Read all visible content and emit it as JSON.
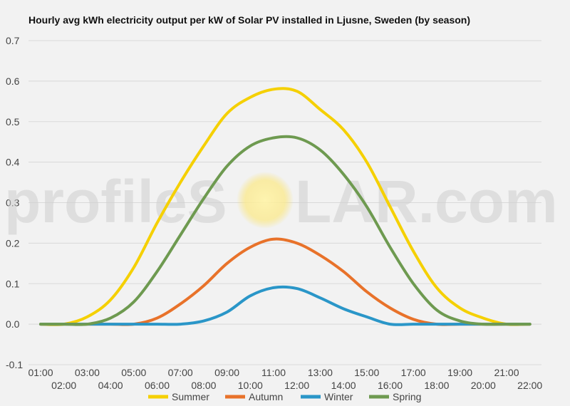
{
  "watermark": {
    "left": "profileS",
    "right": "LAR.com"
  },
  "chart_data": {
    "type": "line",
    "title": "Hourly avg kWh electricity output per kW of Solar PV installed in Ljusne, Sweden (by season)",
    "xlabel": "",
    "ylabel": "",
    "ylim": [
      -0.1,
      0.7
    ],
    "yticks": [
      "-0.1",
      "0.0",
      "0.1",
      "0.2",
      "0.3",
      "0.4",
      "0.5",
      "0.6",
      "0.7"
    ],
    "grid": true,
    "legend": "bottom",
    "x": [
      "01:00",
      "02:00",
      "03:00",
      "04:00",
      "05:00",
      "06:00",
      "07:00",
      "08:00",
      "09:00",
      "10:00",
      "11:00",
      "12:00",
      "13:00",
      "14:00",
      "15:00",
      "16:00",
      "17:00",
      "18:00",
      "19:00",
      "20:00",
      "21:00",
      "22:00"
    ],
    "series": [
      {
        "name": "Summer",
        "color": "#f5d000",
        "values": [
          0.0,
          0.0,
          0.018,
          0.06,
          0.14,
          0.25,
          0.35,
          0.44,
          0.52,
          0.56,
          0.58,
          0.575,
          0.53,
          0.48,
          0.4,
          0.29,
          0.18,
          0.09,
          0.04,
          0.015,
          0.0,
          0.0
        ]
      },
      {
        "name": "Autumn",
        "color": "#e8722a",
        "values": [
          0.0,
          0.0,
          0.0,
          0.0,
          0.0,
          0.015,
          0.05,
          0.095,
          0.15,
          0.19,
          0.21,
          0.2,
          0.17,
          0.13,
          0.08,
          0.04,
          0.012,
          0.0,
          0.0,
          0.0,
          0.0,
          0.0
        ]
      },
      {
        "name": "Winter",
        "color": "#2a96c8",
        "values": [
          0.0,
          0.0,
          0.0,
          0.0,
          0.0,
          0.0,
          0.0,
          0.008,
          0.03,
          0.07,
          0.09,
          0.088,
          0.065,
          0.038,
          0.018,
          0.0,
          0.0,
          0.0,
          0.0,
          0.0,
          0.0,
          0.0
        ]
      },
      {
        "name": "Spring",
        "color": "#6e9a50",
        "values": [
          0.0,
          0.0,
          0.0,
          0.015,
          0.055,
          0.13,
          0.22,
          0.31,
          0.39,
          0.44,
          0.46,
          0.46,
          0.43,
          0.37,
          0.29,
          0.19,
          0.1,
          0.035,
          0.008,
          0.0,
          0.0,
          0.0
        ]
      }
    ]
  }
}
